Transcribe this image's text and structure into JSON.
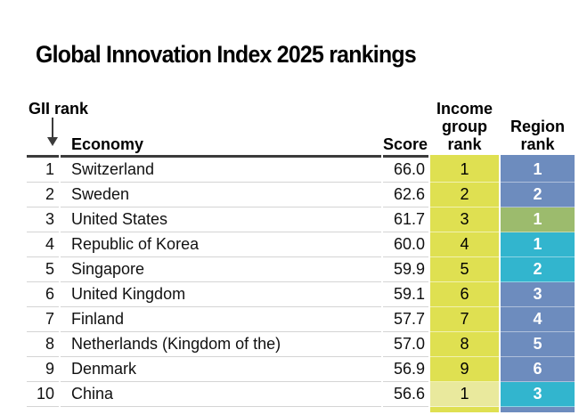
{
  "title": "Global Innovation Index 2025 rankings",
  "colors": {
    "income_yellow": "#dfe051",
    "income_yellow_light": "#e9e99d",
    "region_blue": "#6d8cbe",
    "region_green": "#9cbb6d",
    "region_cyan": "#32b5ce",
    "header_border": "#3b3b3b",
    "row_separator": "#d4d4d4"
  },
  "table": {
    "headers": {
      "gii_rank": "GII rank",
      "economy": "Economy",
      "score": "Score",
      "income_group_rank": "Income group rank",
      "region_rank": "Region rank"
    },
    "sort": {
      "column": "GII rank",
      "direction": "descending",
      "icon": "down-arrow"
    },
    "rows": [
      {
        "rank": "1",
        "economy": "Switzerland",
        "score": "66.0",
        "income_rank": "1",
        "income_color": "income_yellow",
        "region_rank": "1",
        "region_color": "region_blue"
      },
      {
        "rank": "2",
        "economy": "Sweden",
        "score": "62.6",
        "income_rank": "2",
        "income_color": "income_yellow",
        "region_rank": "2",
        "region_color": "region_blue"
      },
      {
        "rank": "3",
        "economy": "United States",
        "score": "61.7",
        "income_rank": "3",
        "income_color": "income_yellow",
        "region_rank": "1",
        "region_color": "region_green"
      },
      {
        "rank": "4",
        "economy": "Republic of Korea",
        "score": "60.0",
        "income_rank": "4",
        "income_color": "income_yellow",
        "region_rank": "1",
        "region_color": "region_cyan"
      },
      {
        "rank": "5",
        "economy": "Singapore",
        "score": "59.9",
        "income_rank": "5",
        "income_color": "income_yellow",
        "region_rank": "2",
        "region_color": "region_cyan"
      },
      {
        "rank": "6",
        "economy": "United Kingdom",
        "score": "59.1",
        "income_rank": "6",
        "income_color": "income_yellow",
        "region_rank": "3",
        "region_color": "region_blue"
      },
      {
        "rank": "7",
        "economy": "Finland",
        "score": "57.7",
        "income_rank": "7",
        "income_color": "income_yellow",
        "region_rank": "4",
        "region_color": "region_blue"
      },
      {
        "rank": "8",
        "economy": "Netherlands (Kingdom of the)",
        "score": "57.0",
        "income_rank": "8",
        "income_color": "income_yellow",
        "region_rank": "5",
        "region_color": "region_blue"
      },
      {
        "rank": "9",
        "economy": "Denmark",
        "score": "56.9",
        "income_rank": "9",
        "income_color": "income_yellow",
        "region_rank": "6",
        "region_color": "region_blue"
      },
      {
        "rank": "10",
        "economy": "China",
        "score": "56.6",
        "income_rank": "1",
        "income_color": "income_yellow_light",
        "region_rank": "3",
        "region_color": "region_cyan"
      }
    ],
    "partial_row": {
      "income_color": "income_yellow",
      "region_color": "region_blue"
    }
  }
}
